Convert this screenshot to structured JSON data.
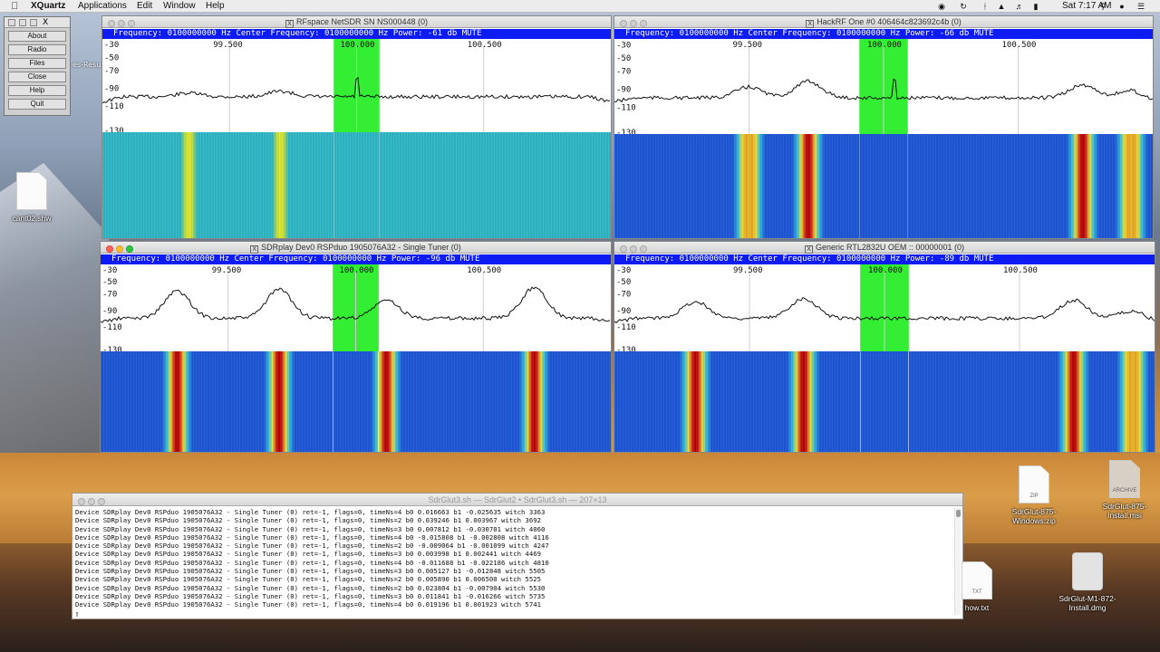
{
  "menubar": {
    "app": "XQuartz",
    "items": [
      "Applications",
      "Edit",
      "Window",
      "Help"
    ],
    "clock": "Sat 7:17 AM"
  },
  "xmenu": {
    "buttons": [
      "About",
      "Radio",
      "Files",
      "Close",
      "Help",
      "Quit"
    ]
  },
  "peek_label": "es-Resu",
  "windows": [
    {
      "title": "RFspace NetSDR SN NS000448 (0)",
      "status": "Frequency: 0100000000 Hz  Center Frequency: 0100000000 Hz Power: -61 db MUTE",
      "freq_labels": [
        "99.500",
        "100.000",
        "100.500"
      ],
      "db_labels": [
        "-30",
        "-50",
        "-70",
        "-90",
        "-110",
        "-130"
      ]
    },
    {
      "title": "HackRF One #0 406464c823692c4b (0)",
      "status": "Frequency: 0100000000 Hz  Center Frequency: 0100000000 Hz Power: -66 db MUTE",
      "freq_labels": [
        "99.500",
        "100.000",
        "100.500"
      ],
      "db_labels": [
        "-30",
        "-50",
        "-70",
        "-90",
        "-110",
        "-130"
      ]
    },
    {
      "title": "SDRplay Dev0 RSPduo 1905076A32 - Single Tuner (0)",
      "status": "Frequency: 0100000000 Hz  Center Frequency: 0100000000 Hz Power: -96 db MUTE",
      "freq_labels": [
        "99.500",
        "100.000",
        "100.500"
      ],
      "db_labels": [
        "-30",
        "-50",
        "-70",
        "-90",
        "-110",
        "-130"
      ]
    },
    {
      "title": "Generic RTL2832U OEM :: 00000001 (0)",
      "status": "Frequency: 0100000000 Hz  Center Frequency: 0100000000 Hz Power: -89 db MUTE",
      "freq_labels": [
        "99.500",
        "100.000",
        "100.500"
      ],
      "db_labels": [
        "-30",
        "-50",
        "-70",
        "-90",
        "-110",
        "-130"
      ]
    }
  ],
  "terminal": {
    "title": "SdrGlut3.sh — SdrGlut2 • SdrGlut3.sh — 207×13",
    "lines": [
      "Device SDRplay Dev0 RSPduo 1905076A32 - Single Tuner (0) ret=-1, flags=0, timeNs=4 b0 0.016663 b1 -0.025635 witch 3363",
      "Device SDRplay Dev0 RSPduo 1905076A32 - Single Tuner (0) ret=-1, flags=0, timeNs=2 b0 0.039246 b1 0.003967 witch 3692",
      "Device SDRplay Dev0 RSPduo 1905076A32 - Single Tuner (0) ret=-1, flags=0, timeNs=3 b0 0.007812 b1 -0.030701 witch 4060",
      "Device SDRplay Dev0 RSPduo 1905076A32 - Single Tuner (0) ret=-1, flags=0, timeNs=4 b0 -0.015808 b1 -0.002808 witch 4116",
      "Device SDRplay Dev0 RSPduo 1905076A32 - Single Tuner (0) ret=-1, flags=0, timeNs=2 b0 -0.009064 b1 -0.001099 witch 4247",
      "Device SDRplay Dev0 RSPduo 1905076A32 - Single Tuner (0) ret=-1, flags=0, timeNs=3 b0 0.003998 b1 0.002441 witch 4469",
      "Device SDRplay Dev0 RSPduo 1905076A32 - Single Tuner (0) ret=-1, flags=0, timeNs=4 b0 -0.011688 b1 -0.022186 witch 4810",
      "Device SDRplay Dev0 RSPduo 1905076A32 - Single Tuner (0) ret=-1, flags=0, timeNs=3 b0 0.005127 b1 -0.012848 witch 5505",
      "Device SDRplay Dev0 RSPduo 1905076A32 - Single Tuner (0) ret=-1, flags=0, timeNs=2 b0 0.005890 b1 0.006500 witch 5525",
      "Device SDRplay Dev0 RSPduo 1905076A32 - Single Tuner (0) ret=-1, flags=0, timeNs=2 b0 0.023804 b1 -0.007904 witch 5530",
      "Device SDRplay Dev0 RSPduo 1905076A32 - Single Tuner (0) ret=-1, flags=0, timeNs=3 b0 0.011841 b1 -0.016266 witch 5735",
      "Device SDRplay Dev0 RSPduo 1905076A32 - Single Tuner (0) ret=-1, flags=0, timeNs=4 b0 0.019196 b1 0.001923 witch 5741",
      "▯"
    ]
  },
  "desktop_icons": [
    {
      "label": "cant02.shw",
      "tag": ""
    },
    {
      "label": "SdrGlut-875-Windows.zip",
      "tag": "ZIP"
    },
    {
      "label": "SdrGlut-875-Install.msi",
      "tag": "ARCHIVE"
    },
    {
      "label": "how.txt",
      "tag": "TXT"
    },
    {
      "label": "SdrGlut-M1-872-Install.dmg",
      "tag": ""
    }
  ],
  "colors": {
    "status_bar": "#0d1cf2",
    "passband": "#33ee33",
    "spectrum_line": "#111111"
  }
}
